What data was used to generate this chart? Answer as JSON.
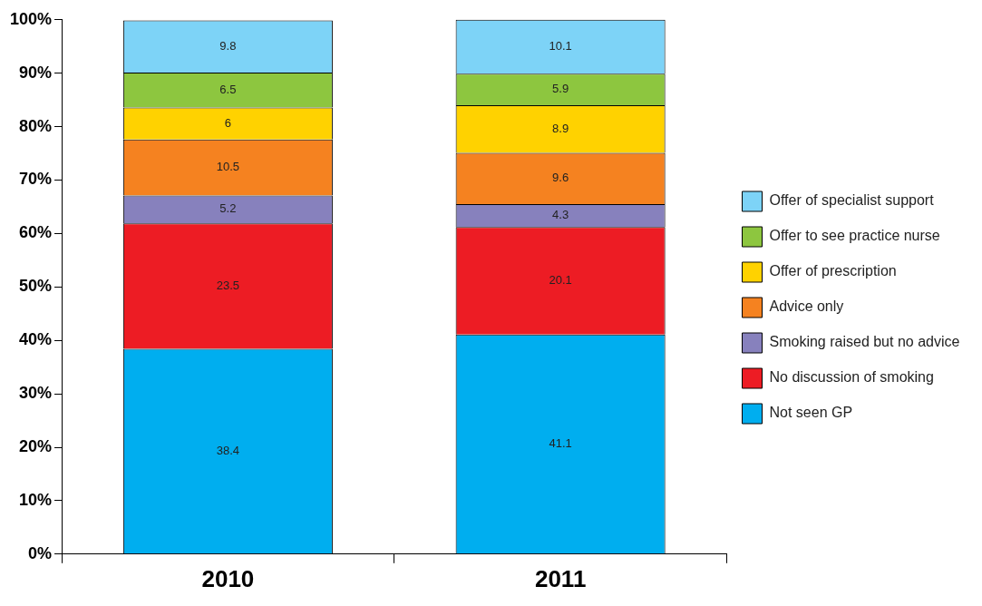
{
  "chart_data": {
    "type": "bar",
    "stacked": true,
    "categories": [
      "2010",
      "2011"
    ],
    "series": [
      {
        "name": "Not seen GP",
        "color": "#00aeef",
        "values": [
          38.4,
          41.1
        ]
      },
      {
        "name": "No discussion of smoking",
        "color": "#ed1c24",
        "values": [
          23.5,
          20.1
        ]
      },
      {
        "name": "Smoking raised but no advice",
        "color": "#8781bd",
        "values": [
          5.2,
          4.3
        ]
      },
      {
        "name": "Advice only",
        "color": "#f58220",
        "values": [
          10.5,
          9.6
        ]
      },
      {
        "name": "Offer of prescription",
        "color": "#ffd200",
        "values": [
          6,
          8.9
        ]
      },
      {
        "name": "Offer to see practice nurse",
        "color": "#8dc63f",
        "values": [
          6.5,
          5.9
        ]
      },
      {
        "name": "Offer of specialist support",
        "color": "#7dd3f7",
        "values": [
          9.8,
          10.1
        ]
      }
    ],
    "ylim": [
      0,
      100
    ],
    "yticks": [
      {
        "value": 0,
        "label": "0%"
      },
      {
        "value": 10,
        "label": "10%"
      },
      {
        "value": 20,
        "label": "20%"
      },
      {
        "value": 30,
        "label": "30%"
      },
      {
        "value": 40,
        "label": "40%"
      },
      {
        "value": 50,
        "label": "50%"
      },
      {
        "value": 60,
        "label": "60%"
      },
      {
        "value": 70,
        "label": "70%"
      },
      {
        "value": 80,
        "label": "80%"
      },
      {
        "value": 90,
        "label": "90%"
      },
      {
        "value": 100,
        "label": "100%"
      }
    ],
    "grid": false,
    "legend": "right",
    "data_labels": true
  }
}
